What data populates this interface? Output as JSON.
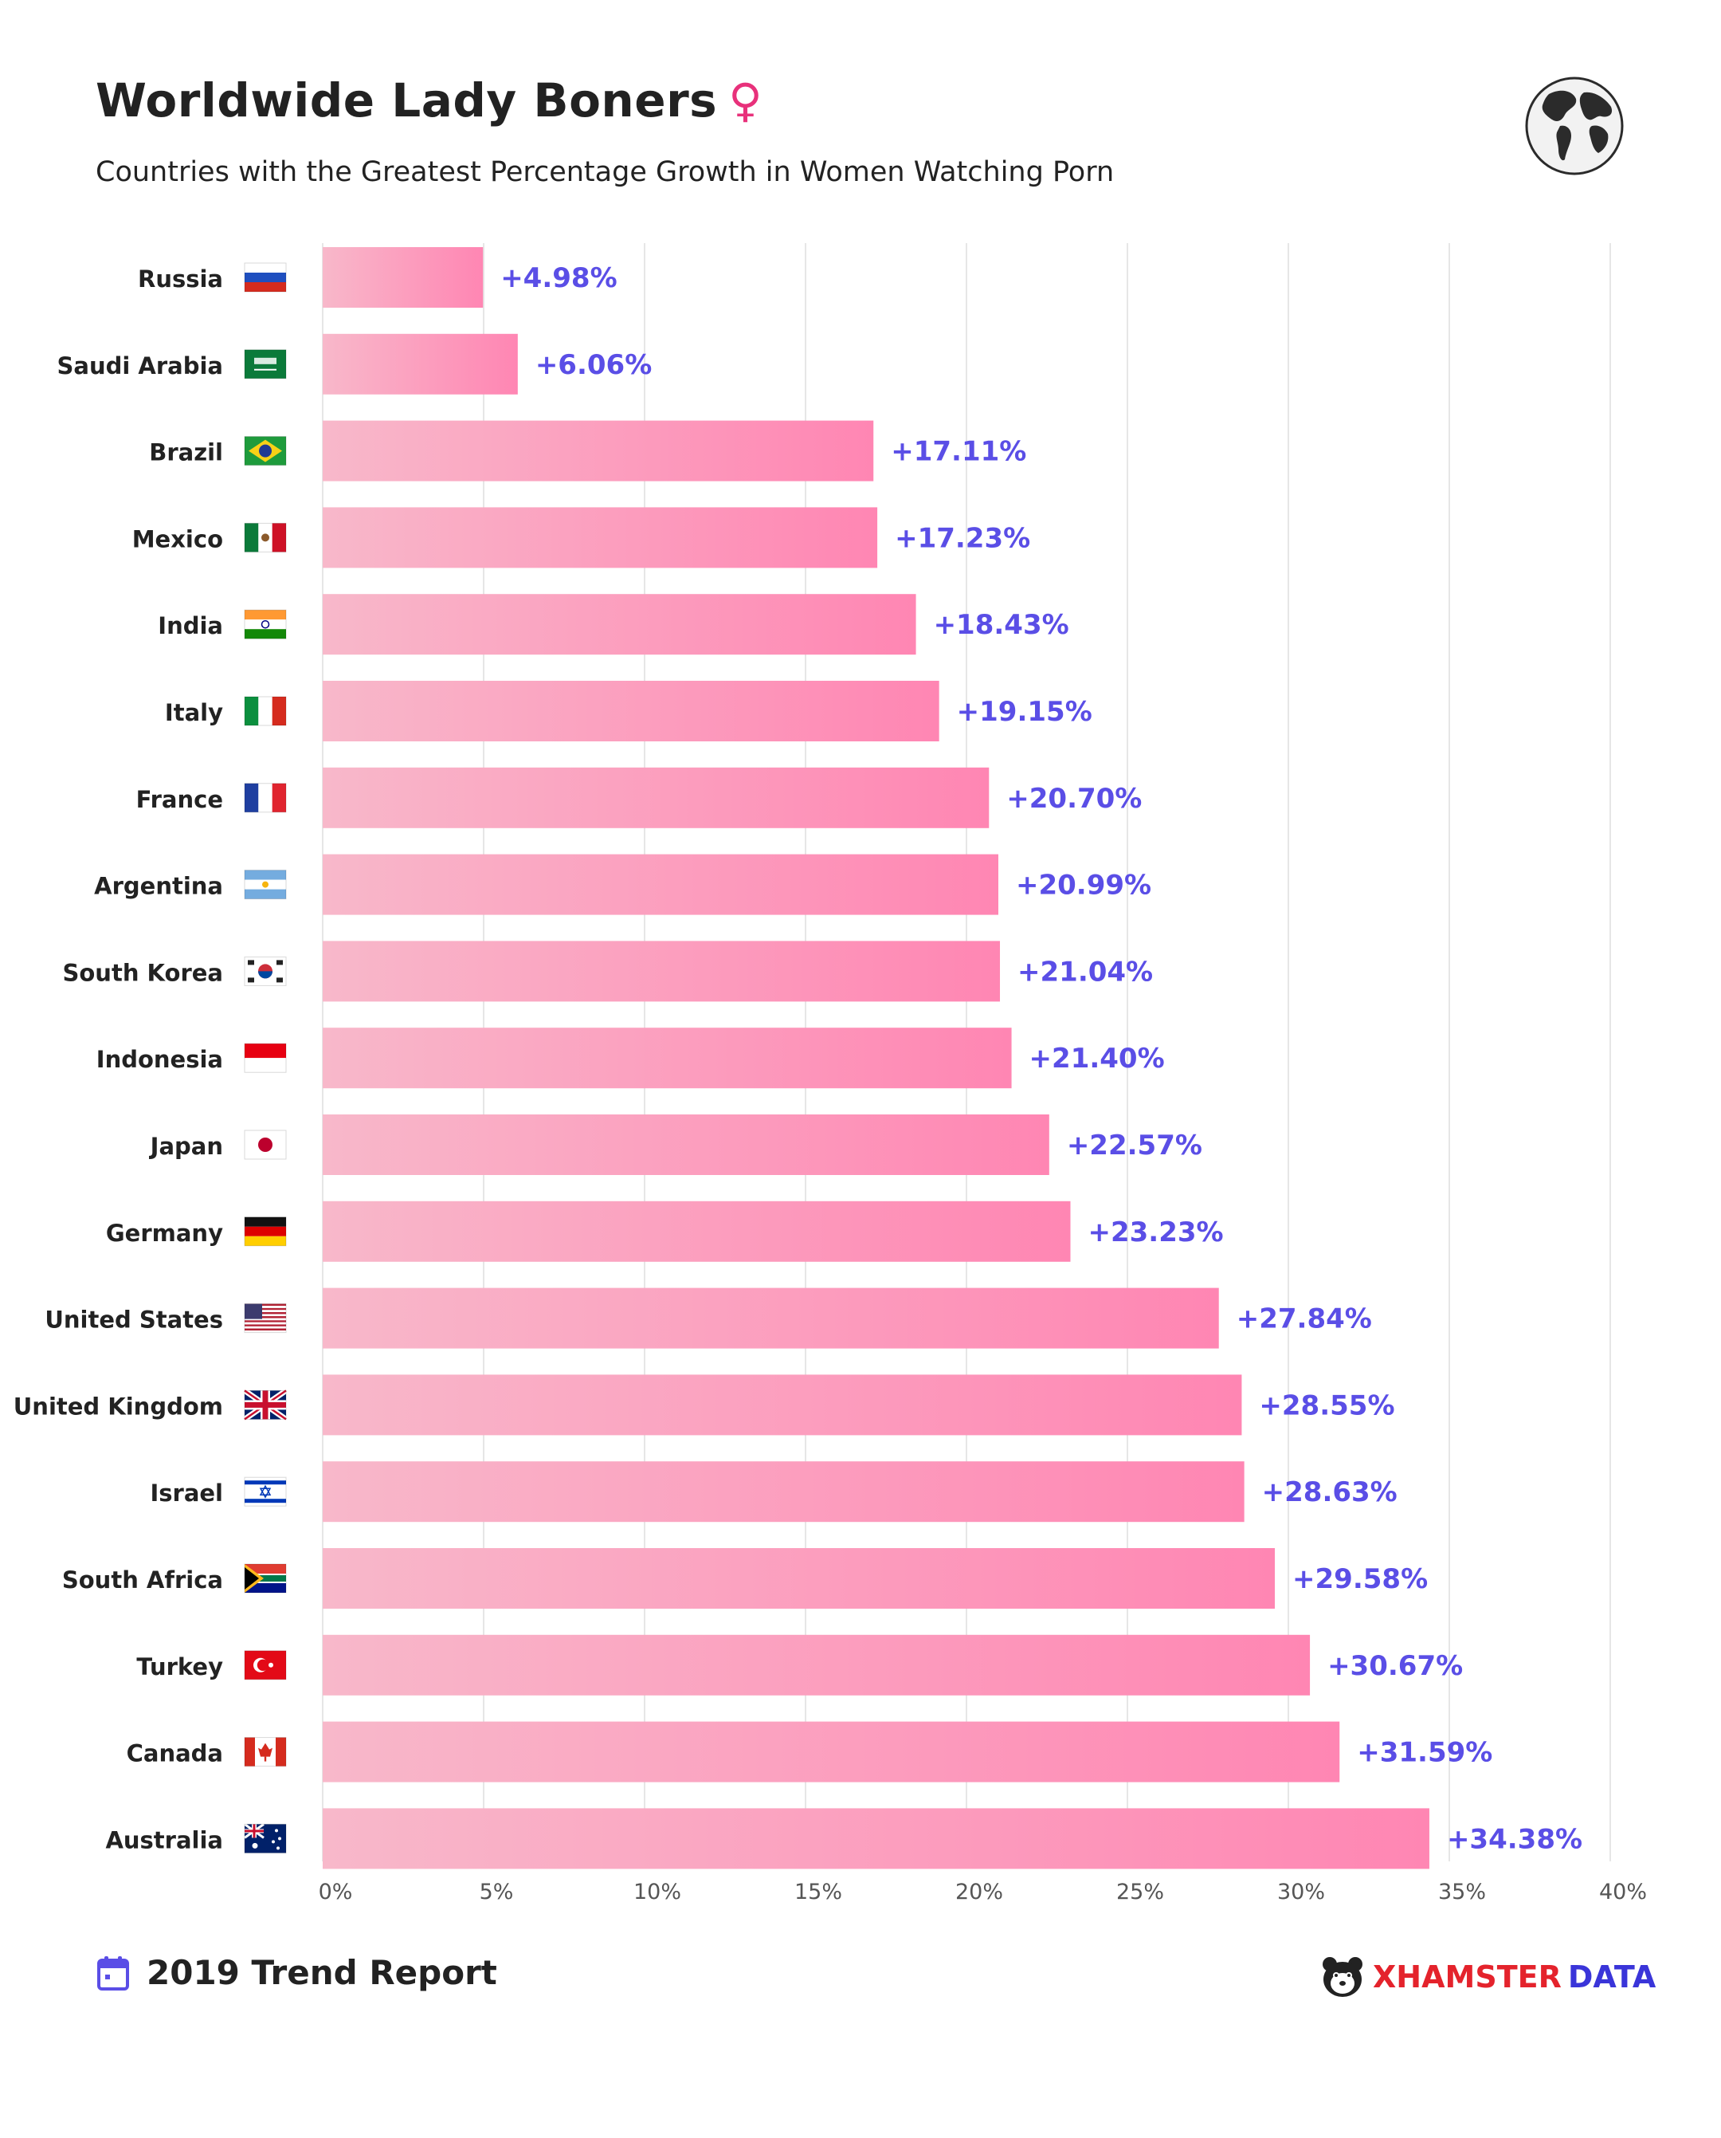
{
  "header": {
    "title": "Worldwide Lady Boners",
    "female_symbol": "♀",
    "subtitle": "Countries with the Greatest Percentage Growth in Women Watching Porn",
    "globe_icon": "globe-icon"
  },
  "footer": {
    "report": "2019 Trend Report",
    "calendar_icon": "calendar-icon",
    "brand_x": "XHAMSTER",
    "brand_data": "DATA",
    "brand_icon": "hamster-logo-icon"
  },
  "colors": {
    "bar_start": "#f8b8ca",
    "bar_end": "#ff86b3",
    "value_label": "#5a4ee6",
    "accent": "#e8317b",
    "grid": "#e6e6e6"
  },
  "chart_data": {
    "type": "bar",
    "orientation": "horizontal",
    "categories": [
      "Russia",
      "Saudi Arabia",
      "Brazil",
      "Mexico",
      "India",
      "Italy",
      "France",
      "Argentina",
      "South Korea",
      "Indonesia",
      "Japan",
      "Germany",
      "United States",
      "United Kingdom",
      "Israel",
      "South Africa",
      "Turkey",
      "Canada",
      "Australia"
    ],
    "values": [
      4.98,
      6.06,
      17.11,
      17.23,
      18.43,
      19.15,
      20.7,
      20.99,
      21.04,
      21.4,
      22.57,
      23.23,
      27.84,
      28.55,
      28.63,
      29.58,
      30.67,
      31.59,
      34.38
    ],
    "value_labels": [
      "+4.98%",
      "+6.06%",
      "+17.11%",
      "+17.23%",
      "+18.43%",
      "+19.15%",
      "+20.70%",
      "+20.99%",
      "+21.04%",
      "+21.40%",
      "+22.57%",
      "+23.23%",
      "+27.84%",
      "+28.55%",
      "+28.63%",
      "+29.58%",
      "+30.67%",
      "+31.59%",
      "+34.38%"
    ],
    "flags": [
      "russia-flag-icon",
      "saudi-arabia-flag-icon",
      "brazil-flag-icon",
      "mexico-flag-icon",
      "india-flag-icon",
      "italy-flag-icon",
      "france-flag-icon",
      "argentina-flag-icon",
      "south-korea-flag-icon",
      "indonesia-flag-icon",
      "japan-flag-icon",
      "germany-flag-icon",
      "united-states-flag-icon",
      "united-kingdom-flag-icon",
      "israel-flag-icon",
      "south-africa-flag-icon",
      "turkey-flag-icon",
      "canada-flag-icon",
      "australia-flag-icon"
    ],
    "xticks": [
      "0%",
      "5%",
      "10%",
      "15%",
      "20%",
      "25%",
      "30%",
      "35%",
      "40%"
    ],
    "xlim": [
      0,
      40
    ],
    "grid": true,
    "legend": "none"
  }
}
